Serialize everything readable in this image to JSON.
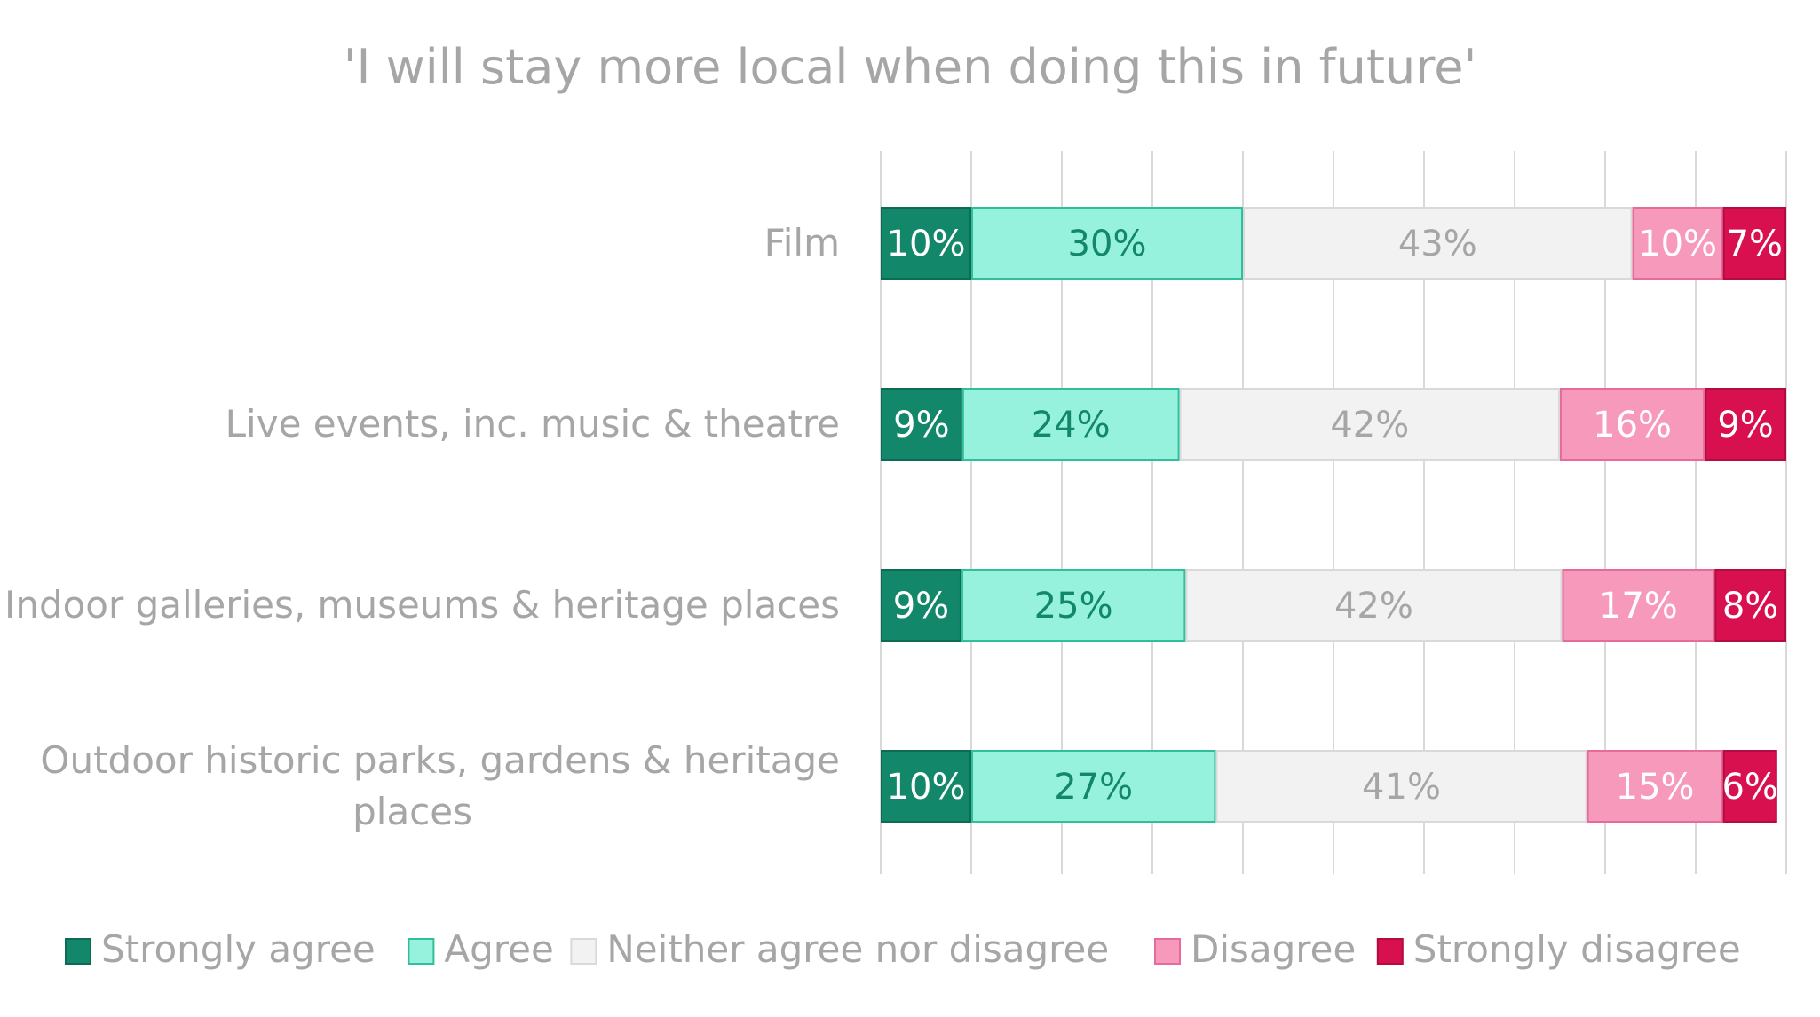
{
  "chart_data": {
    "type": "bar",
    "orientation": "horizontal",
    "stacked": "100%",
    "title": "'I will stay more local when doing this in future'",
    "categories": [
      "Film",
      "Live events, inc. music & theatre",
      "Indoor galleries, museums & heritage places",
      "Outdoor historic parks, gardens & heritage places"
    ],
    "series": [
      {
        "name": "Strongly agree",
        "values": [
          10,
          9,
          9,
          10
        ],
        "labels": [
          "10%",
          "9%",
          "9%",
          "10%"
        ],
        "color": "#13876a",
        "border": "#0d6b53",
        "label_color": "#ffffff"
      },
      {
        "name": "Agree",
        "values": [
          30,
          24,
          25,
          27
        ],
        "labels": [
          "30%",
          "24%",
          "25%",
          "27%"
        ],
        "color": "#96f2dd",
        "border": "#2fbf9a",
        "label_color": "#13876a"
      },
      {
        "name": "Neither agree nor disagree",
        "values": [
          43,
          42,
          42,
          41
        ],
        "labels": [
          "43%",
          "42%",
          "42%",
          "41%"
        ],
        "color": "#f2f2f2",
        "border": "#d9d9d9",
        "label_color": "#a6a6a6"
      },
      {
        "name": "Disagree",
        "values": [
          10,
          16,
          17,
          15
        ],
        "labels": [
          "10%",
          "16%",
          "17%",
          "15%"
        ],
        "color": "#f799bb",
        "border": "#e66b9a",
        "label_color": "#ffffff"
      },
      {
        "name": "Strongly disagree",
        "values": [
          7,
          9,
          8,
          6
        ],
        "labels": [
          "7%",
          "9%",
          "8%",
          "6%"
        ],
        "color": "#d8104f",
        "border": "#b30c40",
        "label_color": "#ffffff"
      }
    ],
    "xlim": [
      0,
      100
    ],
    "x_gridlines": 10,
    "grid": true,
    "legend": "bottom"
  }
}
